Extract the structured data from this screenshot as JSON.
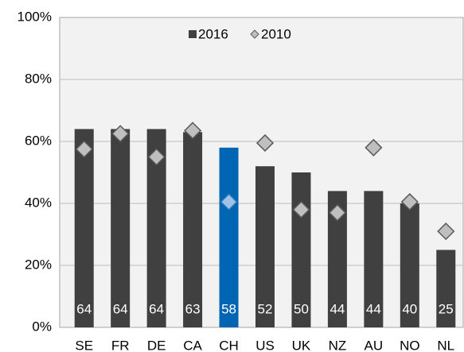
{
  "chart_data": {
    "type": "bar",
    "categories": [
      "SE",
      "FR",
      "DE",
      "CA",
      "CH",
      "US",
      "UK",
      "NZ",
      "AU",
      "NO",
      "NL"
    ],
    "series": [
      {
        "name": "2016",
        "color": "#404040",
        "colors": [
          "#404040",
          "#404040",
          "#404040",
          "#404040",
          "#0066b3",
          "#404040",
          "#404040",
          "#404040",
          "#404040",
          "#404040",
          "#404040"
        ],
        "values": [
          64,
          64,
          64,
          63,
          58,
          52,
          50,
          44,
          44,
          40,
          25
        ]
      },
      {
        "name": "2010",
        "color": "#bfbfbf",
        "marker": "diamond",
        "colors": [
          "#bfbfbf",
          "#bfbfbf",
          "#bfbfbf",
          "#bfbfbf",
          "#9dc3e6",
          "#bfbfbf",
          "#bfbfbf",
          "#bfbfbf",
          "#bfbfbf",
          "#bfbfbf",
          "#bfbfbf"
        ],
        "values": [
          57.5,
          62.5,
          55,
          63.5,
          40.5,
          59.5,
          38,
          37,
          58,
          40.5,
          31
        ]
      }
    ],
    "ylim": [
      0,
      100
    ],
    "yticks": [
      {
        "value": 0,
        "label": "0%"
      },
      {
        "value": 20,
        "label": "20%"
      },
      {
        "value": 40,
        "label": "40%"
      },
      {
        "value": 60,
        "label": "60%"
      },
      {
        "value": 80,
        "label": "80%"
      },
      {
        "value": 100,
        "label": "100%"
      }
    ],
    "grid": true,
    "legend": "top"
  }
}
